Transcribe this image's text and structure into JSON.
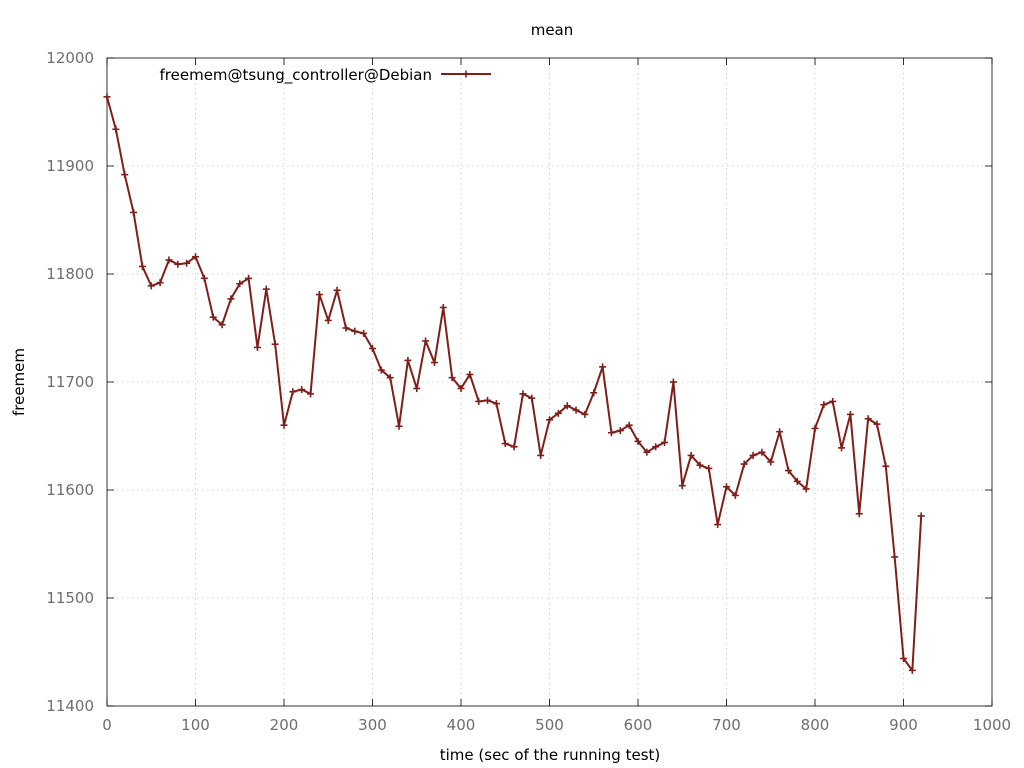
{
  "chart_data": {
    "type": "line",
    "title": "mean",
    "xlabel": "time (sec of the running test)",
    "ylabel": "freemem",
    "xlim": [
      0,
      1000
    ],
    "ylim": [
      11400,
      12000
    ],
    "xticks": [
      0,
      100,
      200,
      300,
      400,
      500,
      600,
      700,
      800,
      900,
      1000
    ],
    "yticks": [
      11400,
      11500,
      11600,
      11700,
      11800,
      11900,
      12000
    ],
    "grid": true,
    "legend_position": "top-left",
    "series": [
      {
        "name": "freemem@tsung_controller@Debian",
        "color": "#7f1f1a",
        "x": [
          0,
          10,
          20,
          30,
          40,
          50,
          60,
          70,
          80,
          90,
          100,
          110,
          120,
          130,
          140,
          150,
          160,
          170,
          180,
          190,
          200,
          210,
          220,
          230,
          240,
          250,
          260,
          270,
          280,
          290,
          300,
          310,
          320,
          330,
          340,
          350,
          360,
          370,
          380,
          390,
          400,
          410,
          420,
          430,
          440,
          450,
          460,
          470,
          480,
          490,
          500,
          510,
          520,
          530,
          540,
          550,
          560,
          570,
          580,
          590,
          600,
          610,
          620,
          630,
          640,
          650,
          660,
          670,
          680,
          690,
          700,
          710,
          720,
          730,
          740,
          750,
          760,
          770,
          780,
          790,
          800,
          810,
          820,
          830,
          840,
          850,
          860,
          870,
          880,
          890,
          900,
          910,
          920
        ],
        "y": [
          11964,
          11934,
          11892,
          11857,
          11807,
          11789,
          11792,
          11813,
          11809,
          11810,
          11816,
          11796,
          11760,
          11753,
          11777,
          11791,
          11796,
          11732,
          11786,
          11735,
          11660,
          11691,
          11693,
          11689,
          11781,
          11757,
          11785,
          11750,
          11747,
          11745,
          11731,
          11711,
          11704,
          11659,
          11720,
          11694,
          11738,
          11718,
          11769,
          11704,
          11694,
          11707,
          11682,
          11683,
          11680,
          11643,
          11640,
          11689,
          11685,
          11632,
          11665,
          11671,
          11678,
          11674,
          11670,
          11690,
          11714,
          11653,
          11655,
          11660,
          11645,
          11635,
          11640,
          11644,
          11700,
          11604,
          11632,
          11623,
          11620,
          11568,
          11603,
          11595,
          11624,
          11632,
          11635,
          11626,
          11654,
          11618,
          11608,
          11601,
          11657,
          11679,
          11682,
          11639,
          11670,
          11578,
          11666,
          11661,
          11622,
          11538,
          11444,
          11433,
          11576
        ]
      }
    ]
  }
}
